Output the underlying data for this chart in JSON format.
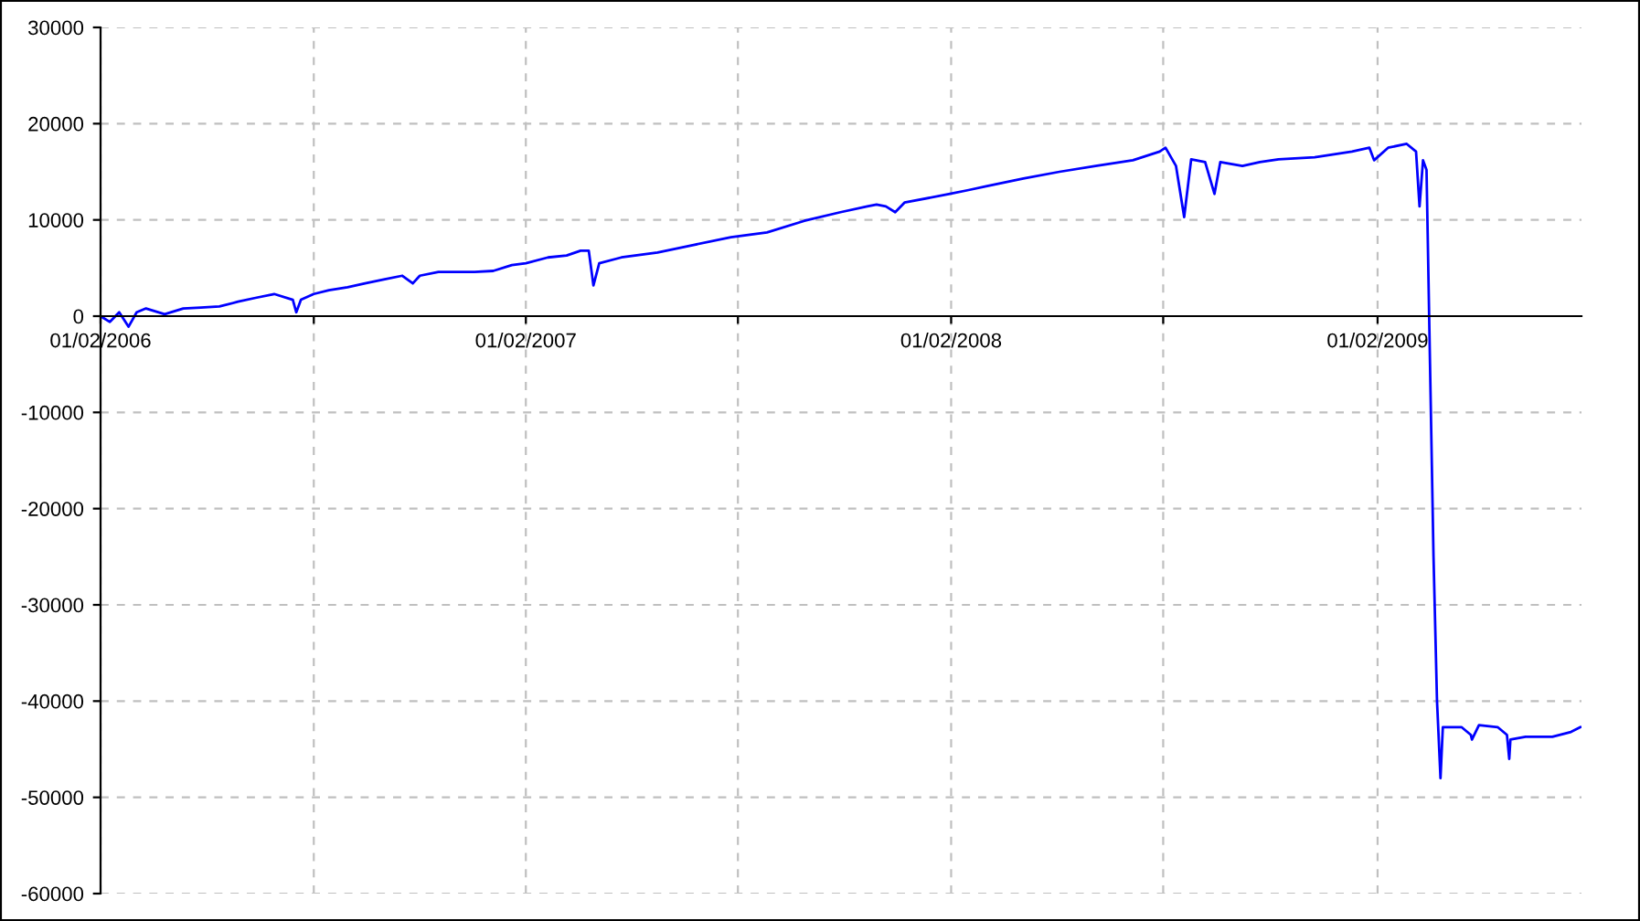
{
  "chart_data": {
    "type": "line",
    "x": [
      "2006-01-02",
      "2006-01-10",
      "2006-01-18",
      "2006-01-26",
      "2006-02-02",
      "2006-02-10",
      "2006-02-26",
      "2006-03-14",
      "2006-03-29",
      "2006-04-14",
      "2006-04-30",
      "2006-05-15",
      "2006-05-31",
      "2006-06-16",
      "2006-06-19",
      "2006-06-23",
      "2006-07-04",
      "2006-07-17",
      "2006-08-02",
      "2006-08-17",
      "2006-09-02",
      "2006-09-18",
      "2006-09-27",
      "2006-10-03",
      "2006-10-19",
      "2006-11-04",
      "2006-11-19",
      "2006-12-05",
      "2006-12-21",
      "2007-01-02",
      "2007-01-21",
      "2007-02-06",
      "2007-02-18",
      "2007-02-25",
      "2007-03-01",
      "2007-03-06",
      "2007-03-25",
      "2007-04-25",
      "2007-05-26",
      "2007-06-27",
      "2007-07-28",
      "2007-08-29",
      "2007-09-29",
      "2007-10-22",
      "2007-10-30",
      "2007-11-07",
      "2007-11-15",
      "2007-11-23",
      "2008-01-01",
      "2008-01-17",
      "2008-02-01",
      "2008-03-04",
      "2008-04-04",
      "2008-05-05",
      "2008-06-06",
      "2008-06-29",
      "2008-07-04",
      "2008-07-13",
      "2008-07-20",
      "2008-07-26",
      "2008-08-07",
      "2008-08-15",
      "2008-08-20",
      "2008-09-08",
      "2008-09-23",
      "2008-10-09",
      "2008-11-09",
      "2008-12-11",
      "2008-12-26",
      "2008-12-30",
      "2009-01-11",
      "2009-01-27",
      "2009-02-04",
      "2009-02-07",
      "2009-02-10",
      "2009-02-13",
      "2009-02-16",
      "2009-02-19",
      "2009-02-22",
      "2009-02-25",
      "2009-02-27",
      "2009-03-06",
      "2009-03-15",
      "2009-03-23",
      "2009-03-24",
      "2009-03-30",
      "2009-04-15",
      "2009-04-23",
      "2009-04-25",
      "2009-04-26",
      "2009-05-09",
      "2009-06-01",
      "2009-06-17",
      "2009-06-25"
    ],
    "series": [
      {
        "color": "#0000ff",
        "values": [
          0,
          -600,
          400,
          -1100,
          400,
          800,
          200,
          800,
          900,
          1000,
          1500,
          1900,
          2300,
          1700,
          400,
          1700,
          2300,
          2700,
          3000,
          3400,
          3800,
          4200,
          3400,
          4200,
          4600,
          4600,
          4600,
          4700,
          5300,
          5500,
          6100,
          6300,
          6800,
          6800,
          3200,
          5500,
          6100,
          6600,
          7400,
          8200,
          8700,
          9900,
          10800,
          11400,
          11600,
          11400,
          10800,
          11800,
          12700,
          13100,
          13500,
          14300,
          15000,
          15600,
          16200,
          17100,
          17500,
          15600,
          10300,
          16300,
          16000,
          12700,
          16000,
          15600,
          16000,
          16300,
          16500,
          17100,
          17500,
          16200,
          17500,
          17900,
          17100,
          11400,
          16200,
          15200,
          -5000,
          -25000,
          -40000,
          -48000,
          -42700,
          -42700,
          -42700,
          -43500,
          -44000,
          -42500,
          -42700,
          -43500,
          -46000,
          -44000,
          -43700,
          -43700,
          -43200,
          -42700
        ]
      }
    ],
    "xlim": [
      "2006-01-02",
      "2009-06-26"
    ],
    "xticks": [
      {
        "value": "2006-01-02",
        "label": "01/02/2006"
      },
      {
        "value": "2006-07-04",
        "label": null
      },
      {
        "value": "2007-01-02",
        "label": "01/02/2007"
      },
      {
        "value": "2007-07-03",
        "label": null
      },
      {
        "value": "2008-01-02",
        "label": "01/02/2008"
      },
      {
        "value": "2008-07-02",
        "label": null
      },
      {
        "value": "2009-01-02",
        "label": "01/02/2009"
      }
    ],
    "ylim": [
      -60000,
      30000
    ],
    "yticks": [
      -60000,
      -50000,
      -40000,
      -30000,
      -20000,
      -10000,
      0,
      10000,
      20000,
      30000
    ],
    "grid": true,
    "marker": "none",
    "line_style": "solid"
  }
}
